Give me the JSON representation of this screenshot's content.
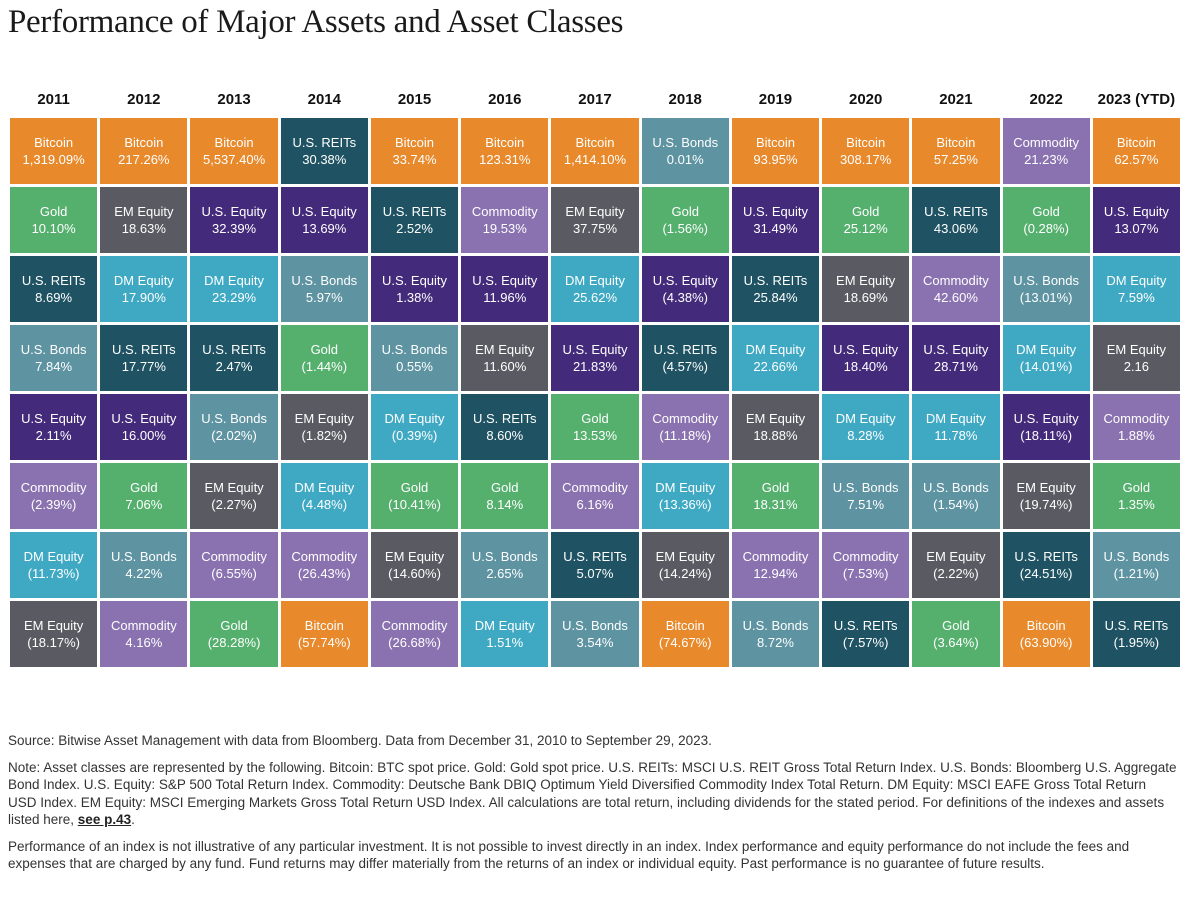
{
  "title": "Performance of Major Assets and Asset Classes",
  "colors": {
    "Bitcoin": "#E8892B",
    "Gold": "#55B06E",
    "U.S. REITs": "#1F5363",
    "U.S. Bonds": "#5E93A2",
    "U.S. Equity": "#432A7A",
    "EM Equity": "#5A5A62",
    "DM Equity": "#3FA9C4",
    "Commodity": "#8A72B0"
  },
  "chart_data": {
    "type": "table",
    "title": "Performance of Major Assets and Asset Classes",
    "years": [
      "2011",
      "2012",
      "2013",
      "2014",
      "2015",
      "2016",
      "2017",
      "2018",
      "2019",
      "2020",
      "2021",
      "2022",
      "2023 (YTD)"
    ],
    "columns": [
      [
        [
          "Bitcoin",
          "1,319.09%"
        ],
        [
          "Gold",
          "10.10%"
        ],
        [
          "U.S. REITs",
          "8.69%"
        ],
        [
          "U.S. Bonds",
          "7.84%"
        ],
        [
          "U.S. Equity",
          "2.11%"
        ],
        [
          "Commodity",
          "(2.39%)"
        ],
        [
          "DM Equity",
          "(11.73%)"
        ],
        [
          "EM Equity",
          "(18.17%)"
        ]
      ],
      [
        [
          "Bitcoin",
          "217.26%"
        ],
        [
          "EM Equity",
          "18.63%"
        ],
        [
          "DM Equity",
          "17.90%"
        ],
        [
          "U.S. REITs",
          "17.77%"
        ],
        [
          "U.S. Equity",
          "16.00%"
        ],
        [
          "Gold",
          "7.06%"
        ],
        [
          "U.S. Bonds",
          "4.22%"
        ],
        [
          "Commodity",
          "4.16%"
        ]
      ],
      [
        [
          "Bitcoin",
          "5,537.40%"
        ],
        [
          "U.S. Equity",
          "32.39%"
        ],
        [
          "DM Equity",
          "23.29%"
        ],
        [
          "U.S. REITs",
          "2.47%"
        ],
        [
          "U.S. Bonds",
          "(2.02%)"
        ],
        [
          "EM Equity",
          "(2.27%)"
        ],
        [
          "Commodity",
          "(6.55%)"
        ],
        [
          "Gold",
          "(28.28%)"
        ]
      ],
      [
        [
          "U.S. REITs",
          "30.38%"
        ],
        [
          "U.S. Equity",
          "13.69%"
        ],
        [
          "U.S. Bonds",
          "5.97%"
        ],
        [
          "Gold",
          "(1.44%)"
        ],
        [
          "EM Equity",
          "(1.82%)"
        ],
        [
          "DM Equity",
          "(4.48%)"
        ],
        [
          "Commodity",
          "(26.43%)"
        ],
        [
          "Bitcoin",
          "(57.74%)"
        ]
      ],
      [
        [
          "Bitcoin",
          "33.74%"
        ],
        [
          "U.S. REITs",
          "2.52%"
        ],
        [
          "U.S. Equity",
          "1.38%"
        ],
        [
          "U.S. Bonds",
          "0.55%"
        ],
        [
          "DM Equity",
          "(0.39%)"
        ],
        [
          "Gold",
          "(10.41%)"
        ],
        [
          "EM Equity",
          "(14.60%)"
        ],
        [
          "Commodity",
          "(26.68%)"
        ]
      ],
      [
        [
          "Bitcoin",
          "123.31%"
        ],
        [
          "Commodity",
          "19.53%"
        ],
        [
          "U.S. Equity",
          "11.96%"
        ],
        [
          "EM Equity",
          "11.60%"
        ],
        [
          "U.S. REITs",
          "8.60%"
        ],
        [
          "Gold",
          "8.14%"
        ],
        [
          "U.S. Bonds",
          "2.65%"
        ],
        [
          "DM Equity",
          "1.51%"
        ]
      ],
      [
        [
          "Bitcoin",
          "1,414.10%"
        ],
        [
          "EM Equity",
          "37.75%"
        ],
        [
          "DM Equity",
          "25.62%"
        ],
        [
          "U.S. Equity",
          "21.83%"
        ],
        [
          "Gold",
          "13.53%"
        ],
        [
          "Commodity",
          "6.16%"
        ],
        [
          "U.S. REITs",
          "5.07%"
        ],
        [
          "U.S. Bonds",
          "3.54%"
        ]
      ],
      [
        [
          "U.S. Bonds",
          "0.01%"
        ],
        [
          "Gold",
          "(1.56%)"
        ],
        [
          "U.S. Equity",
          "(4.38%)"
        ],
        [
          "U.S. REITs",
          "(4.57%)"
        ],
        [
          "Commodity",
          "(11.18%)"
        ],
        [
          "DM Equity",
          "(13.36%)"
        ],
        [
          "EM Equity",
          "(14.24%)"
        ],
        [
          "Bitcoin",
          "(74.67%)"
        ]
      ],
      [
        [
          "Bitcoin",
          "93.95%"
        ],
        [
          "U.S. Equity",
          "31.49%"
        ],
        [
          "U.S. REITs",
          "25.84%"
        ],
        [
          "DM Equity",
          "22.66%"
        ],
        [
          "EM Equity",
          "18.88%"
        ],
        [
          "Gold",
          "18.31%"
        ],
        [
          "Commodity",
          "12.94%"
        ],
        [
          "U.S. Bonds",
          "8.72%"
        ]
      ],
      [
        [
          "Bitcoin",
          "308.17%"
        ],
        [
          "Gold",
          "25.12%"
        ],
        [
          "EM Equity",
          "18.69%"
        ],
        [
          "U.S. Equity",
          "18.40%"
        ],
        [
          "DM Equity",
          "8.28%"
        ],
        [
          "U.S. Bonds",
          "7.51%"
        ],
        [
          "Commodity",
          "(7.53%)"
        ],
        [
          "U.S. REITs",
          "(7.57%)"
        ]
      ],
      [
        [
          "Bitcoin",
          "57.25%"
        ],
        [
          "U.S. REITs",
          "43.06%"
        ],
        [
          "Commodity",
          "42.60%"
        ],
        [
          "U.S. Equity",
          "28.71%"
        ],
        [
          "DM Equity",
          "11.78%"
        ],
        [
          "U.S. Bonds",
          "(1.54%)"
        ],
        [
          "EM Equity",
          "(2.22%)"
        ],
        [
          "Gold",
          "(3.64%)"
        ]
      ],
      [
        [
          "Commodity",
          "21.23%"
        ],
        [
          "Gold",
          "(0.28%)"
        ],
        [
          "U.S. Bonds",
          "(13.01%)"
        ],
        [
          "DM Equity",
          "(14.01%)"
        ],
        [
          "U.S. Equity",
          "(18.11%)"
        ],
        [
          "EM Equity",
          "(19.74%)"
        ],
        [
          "U.S. REITs",
          "(24.51%)"
        ],
        [
          "Bitcoin",
          "(63.90%)"
        ]
      ],
      [
        [
          "Bitcoin",
          "62.57%"
        ],
        [
          "U.S. Equity",
          "13.07%"
        ],
        [
          "DM Equity",
          "7.59%"
        ],
        [
          "EM Equity",
          "2.16"
        ],
        [
          "Commodity",
          "1.88%"
        ],
        [
          "Gold",
          "1.35%"
        ],
        [
          "U.S. Bonds",
          "(1.21%)"
        ],
        [
          "U.S. REITs",
          "(1.95%)"
        ]
      ]
    ]
  },
  "notes": {
    "source": "Source: Bitwise Asset Management with data from Bloomberg. Data from December 31, 2010 to September 29, 2023.",
    "note": "Note: Asset classes are represented by the following. Bitcoin: BTC spot price. Gold: Gold spot price. U.S. REITs: MSCI U.S. REIT Gross Total Return Index. U.S. Bonds: Bloomberg U.S. Aggregate Bond Index. U.S. Equity: S&P 500 Total Return Index. Commodity: Deutsche Bank DBIQ Optimum Yield Diversified Commodity Index Total Return. DM Equity: MSCI EAFE Gross Total Return USD Index. EM Equity: MSCI Emerging Markets Gross Total Return USD Index. All calculations are total return, including dividends for the stated period. For definitions of the indexes and assets listed here, ",
    "link": "see p.43",
    "note_end": ".",
    "disclaimer": "Performance of an index is not illustrative of any particular investment. It is not possible to invest directly in an index. Index performance and equity performance do not include the fees and expenses that are charged by any fund. Fund returns may differ materially from the returns of an index or individual equity. Past performance is no guarantee of future results."
  }
}
